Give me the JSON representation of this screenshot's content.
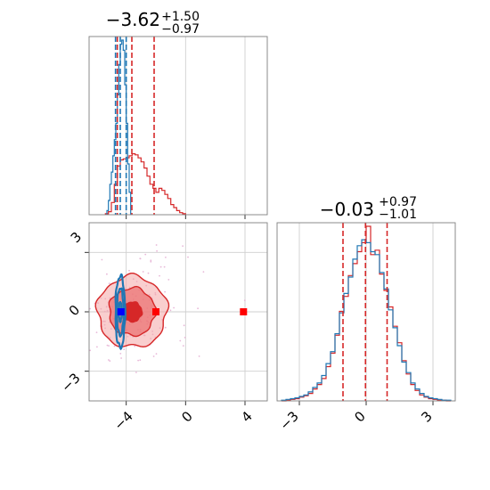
{
  "chart_data": {
    "type": "corner",
    "colors": {
      "red": "#d62728",
      "blue": "#1f77b4",
      "red_fill": "#f08080",
      "truth_red": "#ff0000",
      "truth_blue": "#0000ff"
    },
    "grid": true,
    "panels": [
      {
        "id": "hist_param1",
        "type": "histogram",
        "title": {
          "main": "−3.62",
          "upper": "+1.50",
          "lower": "−0.97"
        },
        "xlim": [
          -6.5,
          5.5
        ],
        "x_ticks": [
          -4,
          0,
          4
        ],
        "series": [
          {
            "name": "",
            "color": "#d62728",
            "bin_edges": [
              -5.4,
              -5.2,
              -5.0,
              -4.8,
              -4.6,
              -4.4,
              -4.2,
              -4.0,
              -3.8,
              -3.6,
              -3.4,
              -3.2,
              -3.0,
              -2.8,
              -2.6,
              -2.4,
              -2.2,
              -2.0,
              -1.8,
              -1.6,
              -1.4,
              -1.2,
              -1.0,
              -0.8,
              -0.6,
              -0.4,
              -0.2,
              0.0
            ],
            "counts": [
              1,
              3,
              12,
              30,
              48,
              54,
              55,
              56,
              58,
              60,
              59,
              56,
              52,
              46,
              38,
              30,
              26,
              22,
              26,
              24,
              20,
              16,
              10,
              7,
              4,
              2,
              1
            ]
          },
          {
            "name": "",
            "color": "#1f77b4",
            "bin_edges": [
              -5.3,
              -5.2,
              -5.1,
              -5.0,
              -4.9,
              -4.8,
              -4.7,
              -4.6,
              -4.5,
              -4.4,
              -4.3,
              -4.2,
              -4.1,
              -4.0,
              -3.9,
              -3.8,
              -3.7
            ],
            "counts": [
              4,
              14,
              30,
              42,
              58,
              74,
              90,
              118,
              148,
              168,
              172,
              162,
              128,
              90,
              50,
              22
            ]
          }
        ],
        "quantile_lines": [
          {
            "color": "#d62728",
            "values": [
              -4.6,
              -3.62,
              -2.12
            ]
          },
          {
            "color": "#1f77b4",
            "values": [
              -4.72,
              -4.4,
              -4.0
            ]
          }
        ]
      },
      {
        "id": "hist_param2",
        "type": "histogram",
        "title": {
          "main": "−0.03",
          "upper": "+0.97",
          "lower": "−1.01"
        },
        "xlim": [
          -4.0,
          4.0
        ],
        "x_ticks": [
          -3,
          0,
          3
        ],
        "x_tick_labels": [
          "−3",
          "0",
          "3"
        ],
        "series": [
          {
            "name": "",
            "color": "#d62728",
            "bin_edges": [
              -3.8,
              -3.6,
              -3.4,
              -3.2,
              -3.0,
              -2.8,
              -2.6,
              -2.4,
              -2.2,
              -2.0,
              -1.8,
              -1.6,
              -1.4,
              -1.2,
              -1.0,
              -0.8,
              -0.6,
              -0.4,
              -0.2,
              0.0,
              0.2,
              0.4,
              0.6,
              0.8,
              1.0,
              1.2,
              1.4,
              1.6,
              1.8,
              2.0,
              2.2,
              2.4,
              2.6,
              2.8,
              3.0,
              3.2,
              3.4,
              3.6,
              3.8
            ],
            "counts": [
              0,
              1,
              2,
              3,
              5,
              7,
              10,
              16,
              22,
              30,
              46,
              64,
              88,
              120,
              140,
              168,
              184,
              200,
              212,
              234,
              196,
              202,
              170,
              148,
              126,
              100,
              78,
              54,
              36,
              22,
              14,
              8,
              5,
              3,
              2,
              1,
              1,
              0
            ]
          },
          {
            "name": "",
            "color": "#1f77b4",
            "bin_edges": [
              -3.8,
              -3.6,
              -3.4,
              -3.2,
              -3.0,
              -2.8,
              -2.6,
              -2.4,
              -2.2,
              -2.0,
              -1.8,
              -1.6,
              -1.4,
              -1.2,
              -1.0,
              -0.8,
              -0.6,
              -0.4,
              -0.2,
              0.0,
              0.2,
              0.4,
              0.6,
              0.8,
              1.0,
              1.2,
              1.4,
              1.6,
              1.8,
              2.0,
              2.2,
              2.4,
              2.6,
              2.8,
              3.0,
              3.2,
              3.4,
              3.6,
              3.8
            ],
            "counts": [
              1,
              2,
              3,
              4,
              6,
              8,
              12,
              18,
              24,
              34,
              50,
              66,
              90,
              118,
              144,
              166,
              190,
              208,
              216,
              212,
              200,
              196,
              172,
              150,
              122,
              98,
              74,
              52,
              38,
              24,
              16,
              10,
              6,
              4,
              3,
              2,
              1,
              1
            ]
          }
        ],
        "quantile_lines": [
          {
            "color": "#d62728",
            "values": [
              -1.04,
              -0.03,
              0.94
            ]
          }
        ]
      },
      {
        "id": "joint_param1_param2",
        "type": "contour",
        "xlim": [
          -6.5,
          5.5
        ],
        "ylim": [
          -4.5,
          4.5
        ],
        "x_ticks": [
          -4,
          0,
          4
        ],
        "x_tick_labels": [
          "−4",
          "0",
          "4"
        ],
        "y_ticks": [
          3,
          0,
          -3
        ],
        "y_tick_labels": [
          "3",
          "0",
          "−3"
        ],
        "distributions": [
          {
            "color": "#d62728",
            "center": [
              -3.6,
              0.0
            ],
            "sigma": [
              1.3,
              1.0
            ],
            "levels": [
              0.5,
              1.2,
              1.8
            ],
            "filled": true
          },
          {
            "color": "#1f77b4",
            "center": [
              -4.4,
              0.0
            ],
            "sigma": [
              0.18,
              1.0
            ],
            "levels": [
              0.5,
              1.2,
              1.8
            ],
            "filled": false
          }
        ],
        "truth_markers": [
          {
            "color": "#0000ff",
            "x": -4.35,
            "y": 0.0
          },
          {
            "color": "#ff0000",
            "x": -2.0,
            "y": 0.0
          },
          {
            "color": "#ff0000",
            "x": 3.9,
            "y": 0.0
          }
        ]
      }
    ]
  }
}
